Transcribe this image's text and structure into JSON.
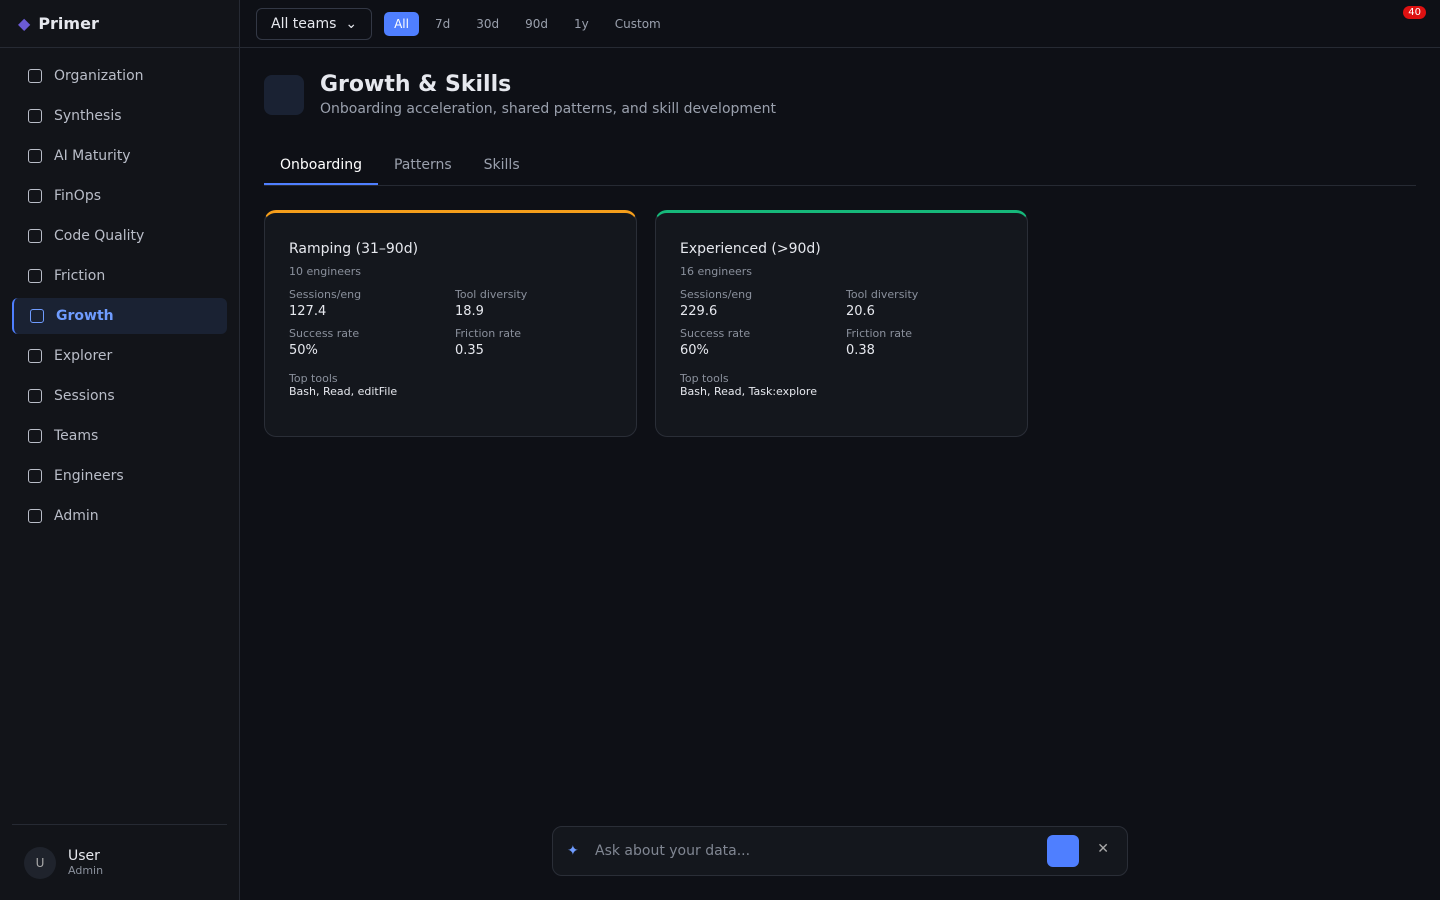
{
  "app": {
    "name": "Primer"
  },
  "nav": [
    "Organization",
    "Synthesis",
    "AI Maturity",
    "FinOps",
    "Code Quality",
    "Friction",
    "Growth",
    "Explorer",
    "Sessions",
    "Teams",
    "Engineers",
    "Admin"
  ],
  "user": {
    "avatar": "U",
    "name": "User",
    "role": "Admin"
  },
  "toolbar": {
    "team": "All teams",
    "ranges": [
      "All",
      "7d",
      "30d",
      "90d",
      "1y"
    ],
    "custom": "Custom",
    "notifications": "40"
  },
  "header": {
    "title": "Growth & Skills",
    "subtitle": "Onboarding acceleration, shared patterns, and skill development"
  },
  "tabs": [
    "Onboarding",
    "Patterns",
    "Skills"
  ],
  "cards": [
    {
      "title": "Ramping (31–90d)",
      "count": "10 engineers",
      "stats": [
        [
          "Sessions/eng",
          "127.4"
        ],
        [
          "Tool diversity",
          "18.9"
        ],
        [
          "Success rate",
          "50%"
        ],
        [
          "Friction rate",
          "0.35"
        ]
      ],
      "tools_label": "Top tools",
      "tools": "Bash, Read, editFile"
    },
    {
      "title": "Experienced (>90d)",
      "count": "16 engineers",
      "stats": [
        [
          "Sessions/eng",
          "229.6"
        ],
        [
          "Tool diversity",
          "20.6"
        ],
        [
          "Success rate",
          "60%"
        ],
        [
          "Friction rate",
          "0.38"
        ]
      ],
      "tools_label": "Top tools",
      "tools": "Bash, Read, Task:explore"
    }
  ],
  "chat": {
    "placeholder": "Ask about your data..."
  }
}
